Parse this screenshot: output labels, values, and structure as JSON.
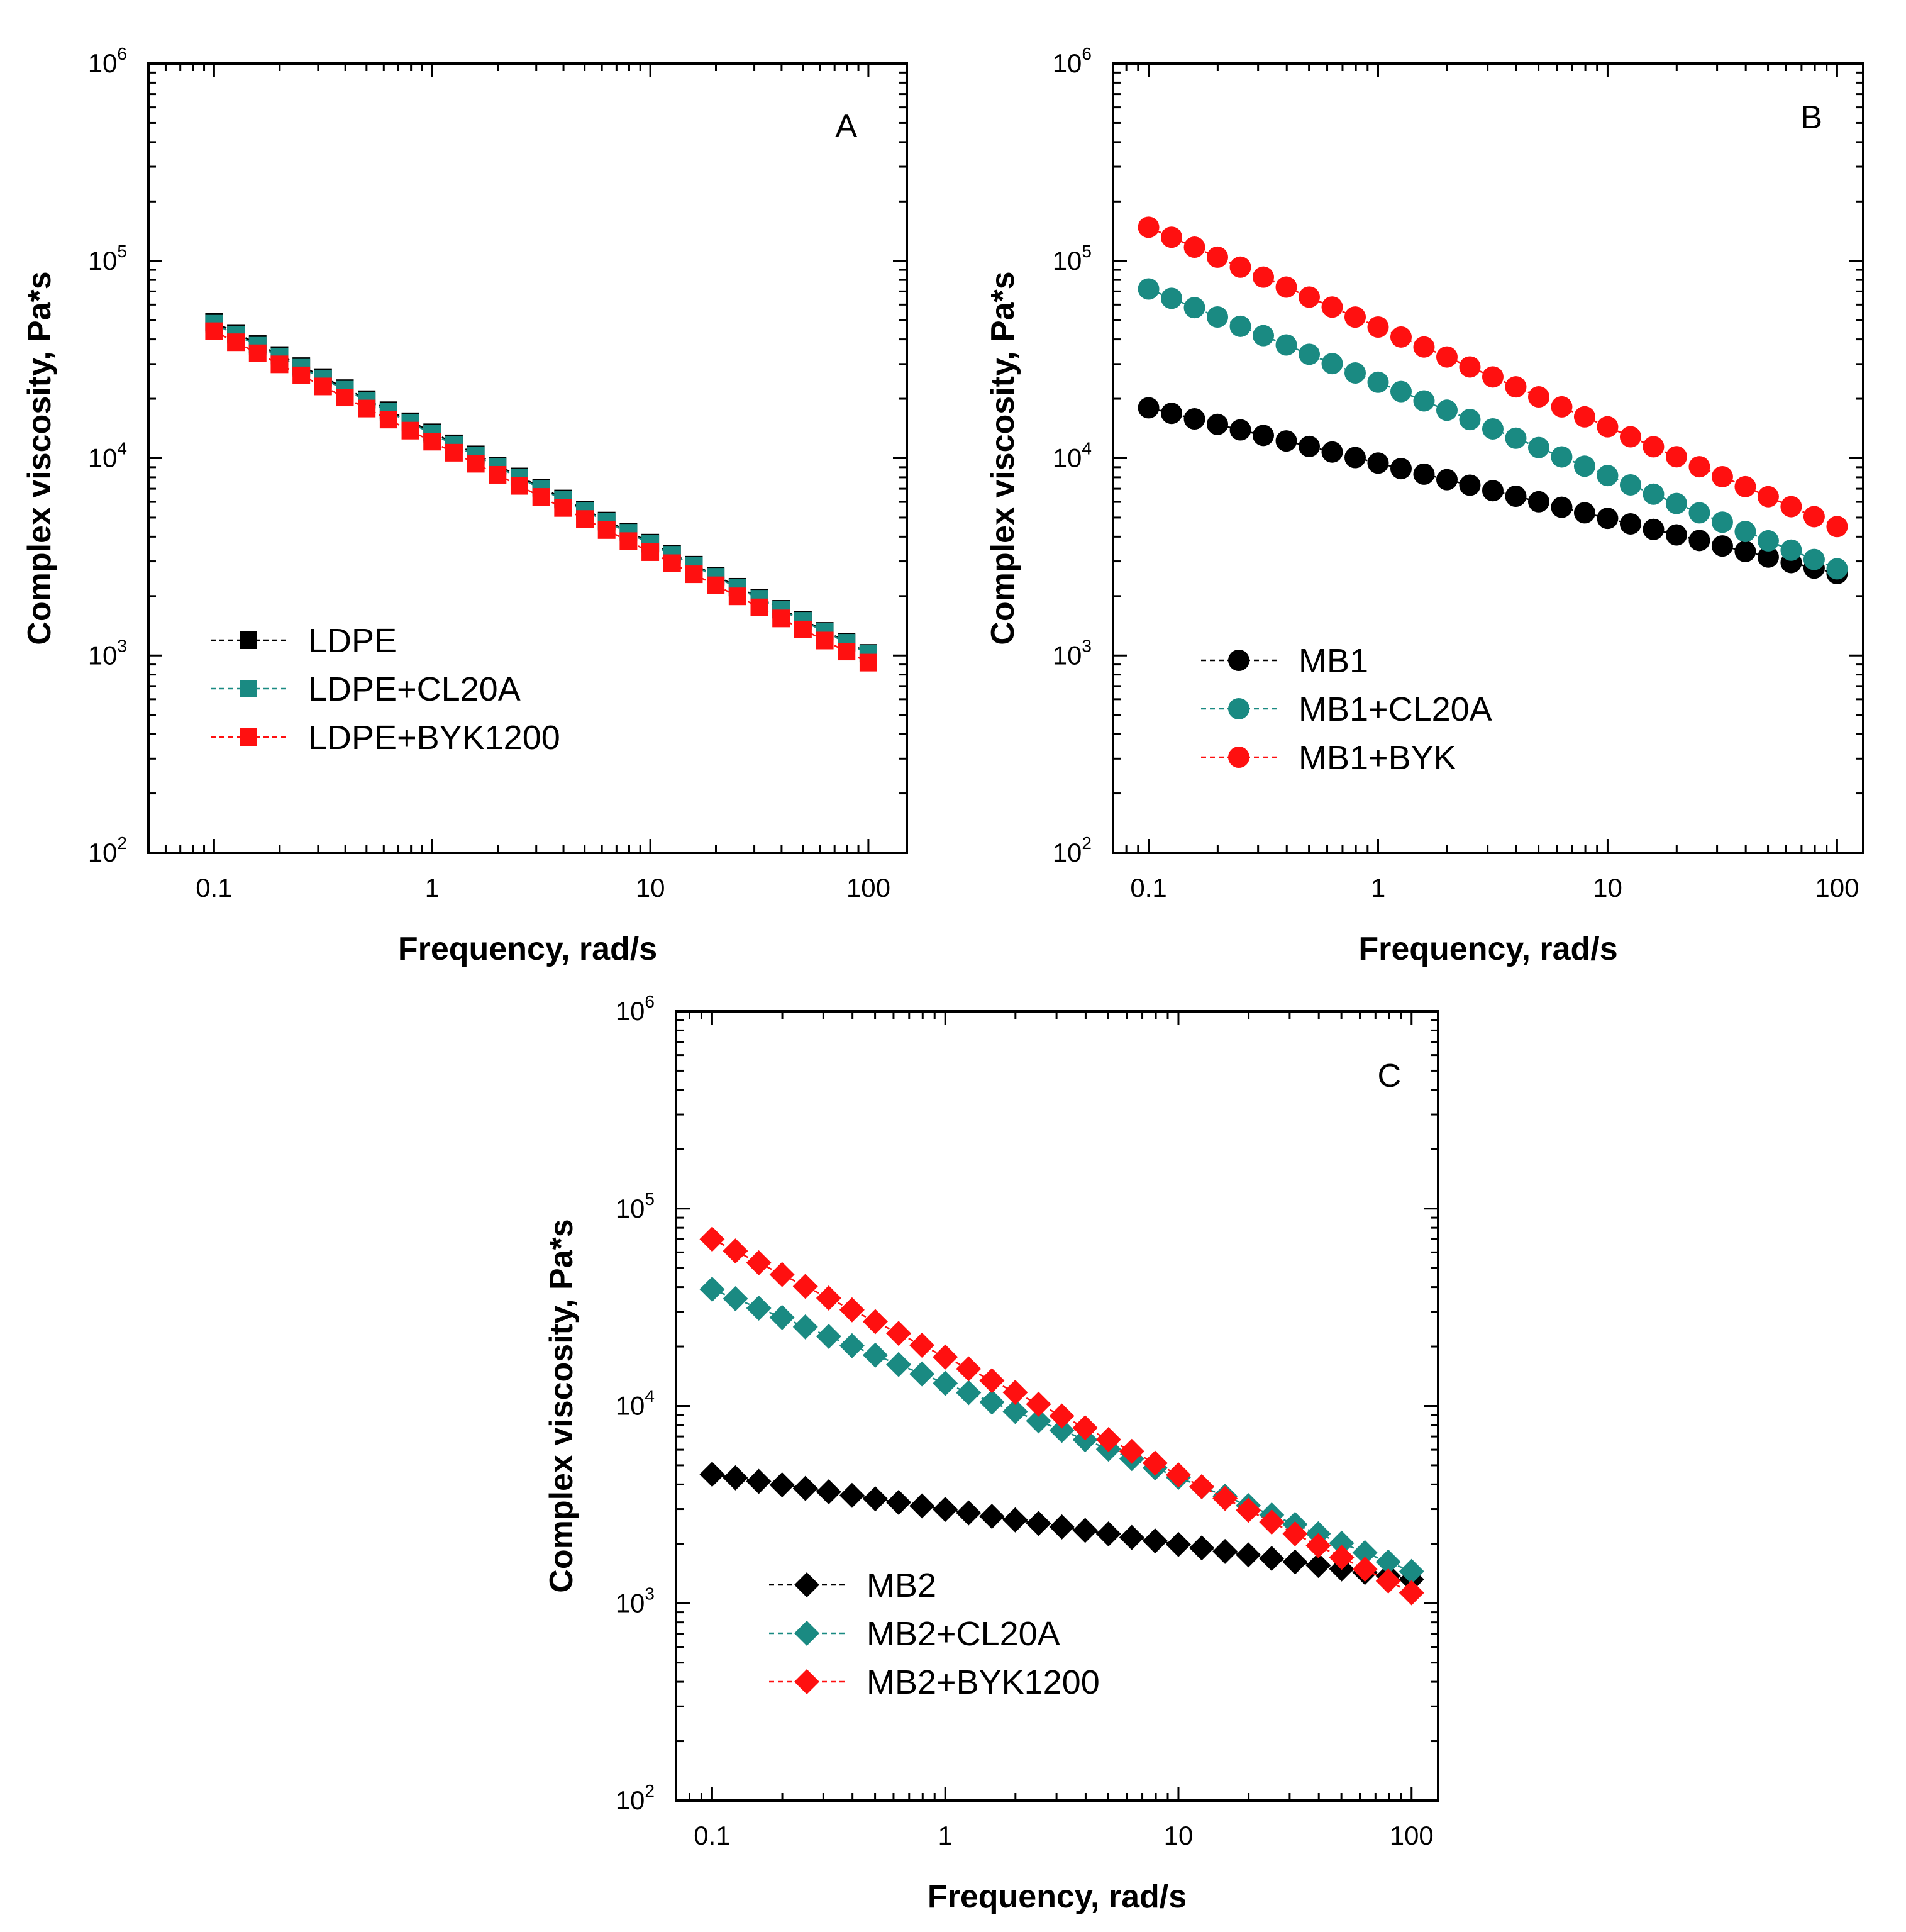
{
  "chart_data": [
    {
      "type": "scatter",
      "panel_label": "A",
      "xlabel": "Frequency, rad/s",
      "ylabel": "Complex viscosity, Pa*s",
      "xscale": "log",
      "yscale": "log",
      "xlim": [
        0.05,
        150
      ],
      "ylim": [
        100,
        1000000
      ],
      "xticks": [
        {
          "value": 0.1,
          "label": "0.1"
        },
        {
          "value": 1,
          "label": "1"
        },
        {
          "value": 10,
          "label": "10"
        },
        {
          "value": 100,
          "label": "100"
        }
      ],
      "yticks": [
        {
          "value": 100,
          "base": "10",
          "exp": "2"
        },
        {
          "value": 1000,
          "base": "10",
          "exp": "3"
        },
        {
          "value": 10000,
          "base": "10",
          "exp": "4"
        },
        {
          "value": 100000,
          "base": "10",
          "exp": "5"
        },
        {
          "value": 1000000,
          "base": "10",
          "exp": "6"
        }
      ],
      "grid": false,
      "legend_position": "lower-left",
      "marker": "square",
      "series": [
        {
          "name": "LDPE",
          "color": "#000000",
          "y_start": 49000,
          "y_end": 1030
        },
        {
          "name": "LDPE+CL20A",
          "color": "#1a8a82",
          "y_start": 48000,
          "y_end": 1020
        },
        {
          "name": "LDPE+BYK1200",
          "color": "#ff1010",
          "y_start": 44000,
          "y_end": 920
        }
      ]
    },
    {
      "type": "scatter",
      "panel_label": "B",
      "xlabel": "Frequency, rad/s",
      "ylabel": "Complex viscosity, Pa*s",
      "xscale": "log",
      "yscale": "log",
      "xlim": [
        0.07,
        130
      ],
      "ylim": [
        100,
        1000000
      ],
      "xticks": [
        {
          "value": 0.1,
          "label": "0.1"
        },
        {
          "value": 1,
          "label": "1"
        },
        {
          "value": 10,
          "label": "10"
        },
        {
          "value": 100,
          "label": "100"
        }
      ],
      "yticks": [
        {
          "value": 100,
          "base": "10",
          "exp": "2"
        },
        {
          "value": 1000,
          "base": "10",
          "exp": "3"
        },
        {
          "value": 10000,
          "base": "10",
          "exp": "4"
        },
        {
          "value": 100000,
          "base": "10",
          "exp": "5"
        },
        {
          "value": 1000000,
          "base": "10",
          "exp": "6"
        }
      ],
      "grid": false,
      "legend_position": "lower-left",
      "marker": "circle",
      "series": [
        {
          "name": "MB1",
          "color": "#000000",
          "y_start": 18000,
          "y_end": 2600
        },
        {
          "name": "MB1+CL20A",
          "color": "#1a8a82",
          "y_start": 72000,
          "y_end": 2750
        },
        {
          "name": "MB1+BYK",
          "color": "#ff1010",
          "y_start": 148000,
          "y_end": 4500
        }
      ]
    },
    {
      "type": "scatter",
      "panel_label": "C",
      "xlabel": "Frequency, rad/s",
      "ylabel": "Complex viscosity, Pa*s",
      "xscale": "log",
      "yscale": "log",
      "xlim": [
        0.07,
        130
      ],
      "ylim": [
        100,
        1000000
      ],
      "xticks": [
        {
          "value": 0.1,
          "label": "0.1"
        },
        {
          "value": 1,
          "label": "1"
        },
        {
          "value": 10,
          "label": "10"
        },
        {
          "value": 100,
          "label": "100"
        }
      ],
      "yticks": [
        {
          "value": 100,
          "base": "10",
          "exp": "2"
        },
        {
          "value": 1000,
          "base": "10",
          "exp": "3"
        },
        {
          "value": 10000,
          "base": "10",
          "exp": "4"
        },
        {
          "value": 100000,
          "base": "10",
          "exp": "5"
        },
        {
          "value": 1000000,
          "base": "10",
          "exp": "6"
        }
      ],
      "grid": false,
      "legend_position": "lower-left",
      "marker": "diamond",
      "series": [
        {
          "name": "MB2",
          "color": "#000000",
          "y_start": 4500,
          "y_end": 1320
        },
        {
          "name": "MB2+CL20A",
          "color": "#1a8a82",
          "y_start": 39000,
          "y_end": 1450
        },
        {
          "name": "MB2+BYK1200",
          "color": "#ff1010",
          "y_start": 70000,
          "y_end": 1130
        }
      ]
    }
  ]
}
